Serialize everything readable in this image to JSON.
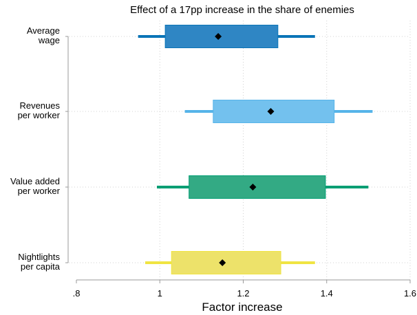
{
  "chart_data": {
    "type": "coefficient-plot",
    "title": "Effect of a 17pp increase in the share of enemies",
    "xlabel": "Factor increase",
    "ylabel": "",
    "xlim": [
      0.8,
      1.6
    ],
    "xticks": [
      {
        "value": 0.8,
        "label": ".8"
      },
      {
        "value": 1.0,
        "label": "1"
      },
      {
        "value": 1.2,
        "label": "1.2"
      },
      {
        "value": 1.4,
        "label": "1.4"
      },
      {
        "value": 1.6,
        "label": "1.6"
      }
    ],
    "grid": true,
    "series": [
      {
        "label": [
          "Average",
          "wage"
        ],
        "estimate": 1.14,
        "ci_inner": [
          1.013,
          1.283
        ],
        "ci_outer": [
          0.948,
          1.372
        ],
        "color": "#2f86c4",
        "line_color": "#0a74b7"
      },
      {
        "label": [
          "Revenues",
          "per worker"
        ],
        "estimate": 1.266,
        "ci_inner": [
          1.128,
          1.418
        ],
        "ci_outer": [
          1.06,
          1.51
        ],
        "color": "#73c1ee",
        "line_color": "#56b4e9"
      },
      {
        "label": [
          "Value added",
          "per worker"
        ],
        "estimate": 1.223,
        "ci_inner": [
          1.07,
          1.397
        ],
        "ci_outer": [
          0.993,
          1.5
        ],
        "color": "#33aa84",
        "line_color": "#009e73"
      },
      {
        "label": [
          "Nightlights",
          "per capita"
        ],
        "estimate": 1.15,
        "ci_inner": [
          1.028,
          1.29
        ],
        "ci_outer": [
          0.965,
          1.372
        ],
        "color": "#ede26a",
        "line_color": "#f0e442"
      }
    ]
  }
}
